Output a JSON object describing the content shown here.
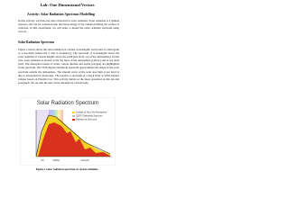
{
  "header": {
    "title": "Lab: One Dimensional Vectors",
    "subtitle": "Activity: Solar Radiation Spectrum Modelling"
  },
  "intro": "In this activity, we'll use the data collected for solar radiation. Solar radiation is a limited resource and can be converted into electrical energy if the radiation hitting the surface is collected. In this experiment, we will learn to model the solar radiation spectrum using vectors.",
  "section": {
    "heading": "Solar Radiation Spectrum",
    "paragraph": "Figure 1 below shows the solar radiation at various wavelengths, each point is a histogram or a spectrum (where the x axis is frequency). The spectrum of wavelengths above the solar radiation at various heights above the earth (sea level, top of the atmosphere). In this case, solar radiation is plotted at the top layer of the atmosphere (yellow) and at sea level (red). The absorption bands of water, carbon dioxide and ozone (oxygen) are highlighted in the spectrum. The 5250 degree blackbody spectrum approximates the shape of the solar spectrum outside the atmosphere. The smooth curve of the solar spectrum at sea level is due to absorption by molecules. The result is a spectrum of a black body at 5250 degrees Celsius based on Planck's law. This activity builds on the ideas presented in this lab and paragraph. We see that the sun can be modeled as a black body."
  },
  "figure": {
    "title": "Solar Radiation Spectrum",
    "legend": [
      "Sunlight at Top of the Atmosphere",
      "5250°C Blackbody Spectrum",
      "Radiation at Sea Level"
    ],
    "bands": [
      "UV",
      "Visible",
      "Infrared"
    ],
    "caption": "Figure 1 Solar radiation spectrum at various altitudes."
  }
}
